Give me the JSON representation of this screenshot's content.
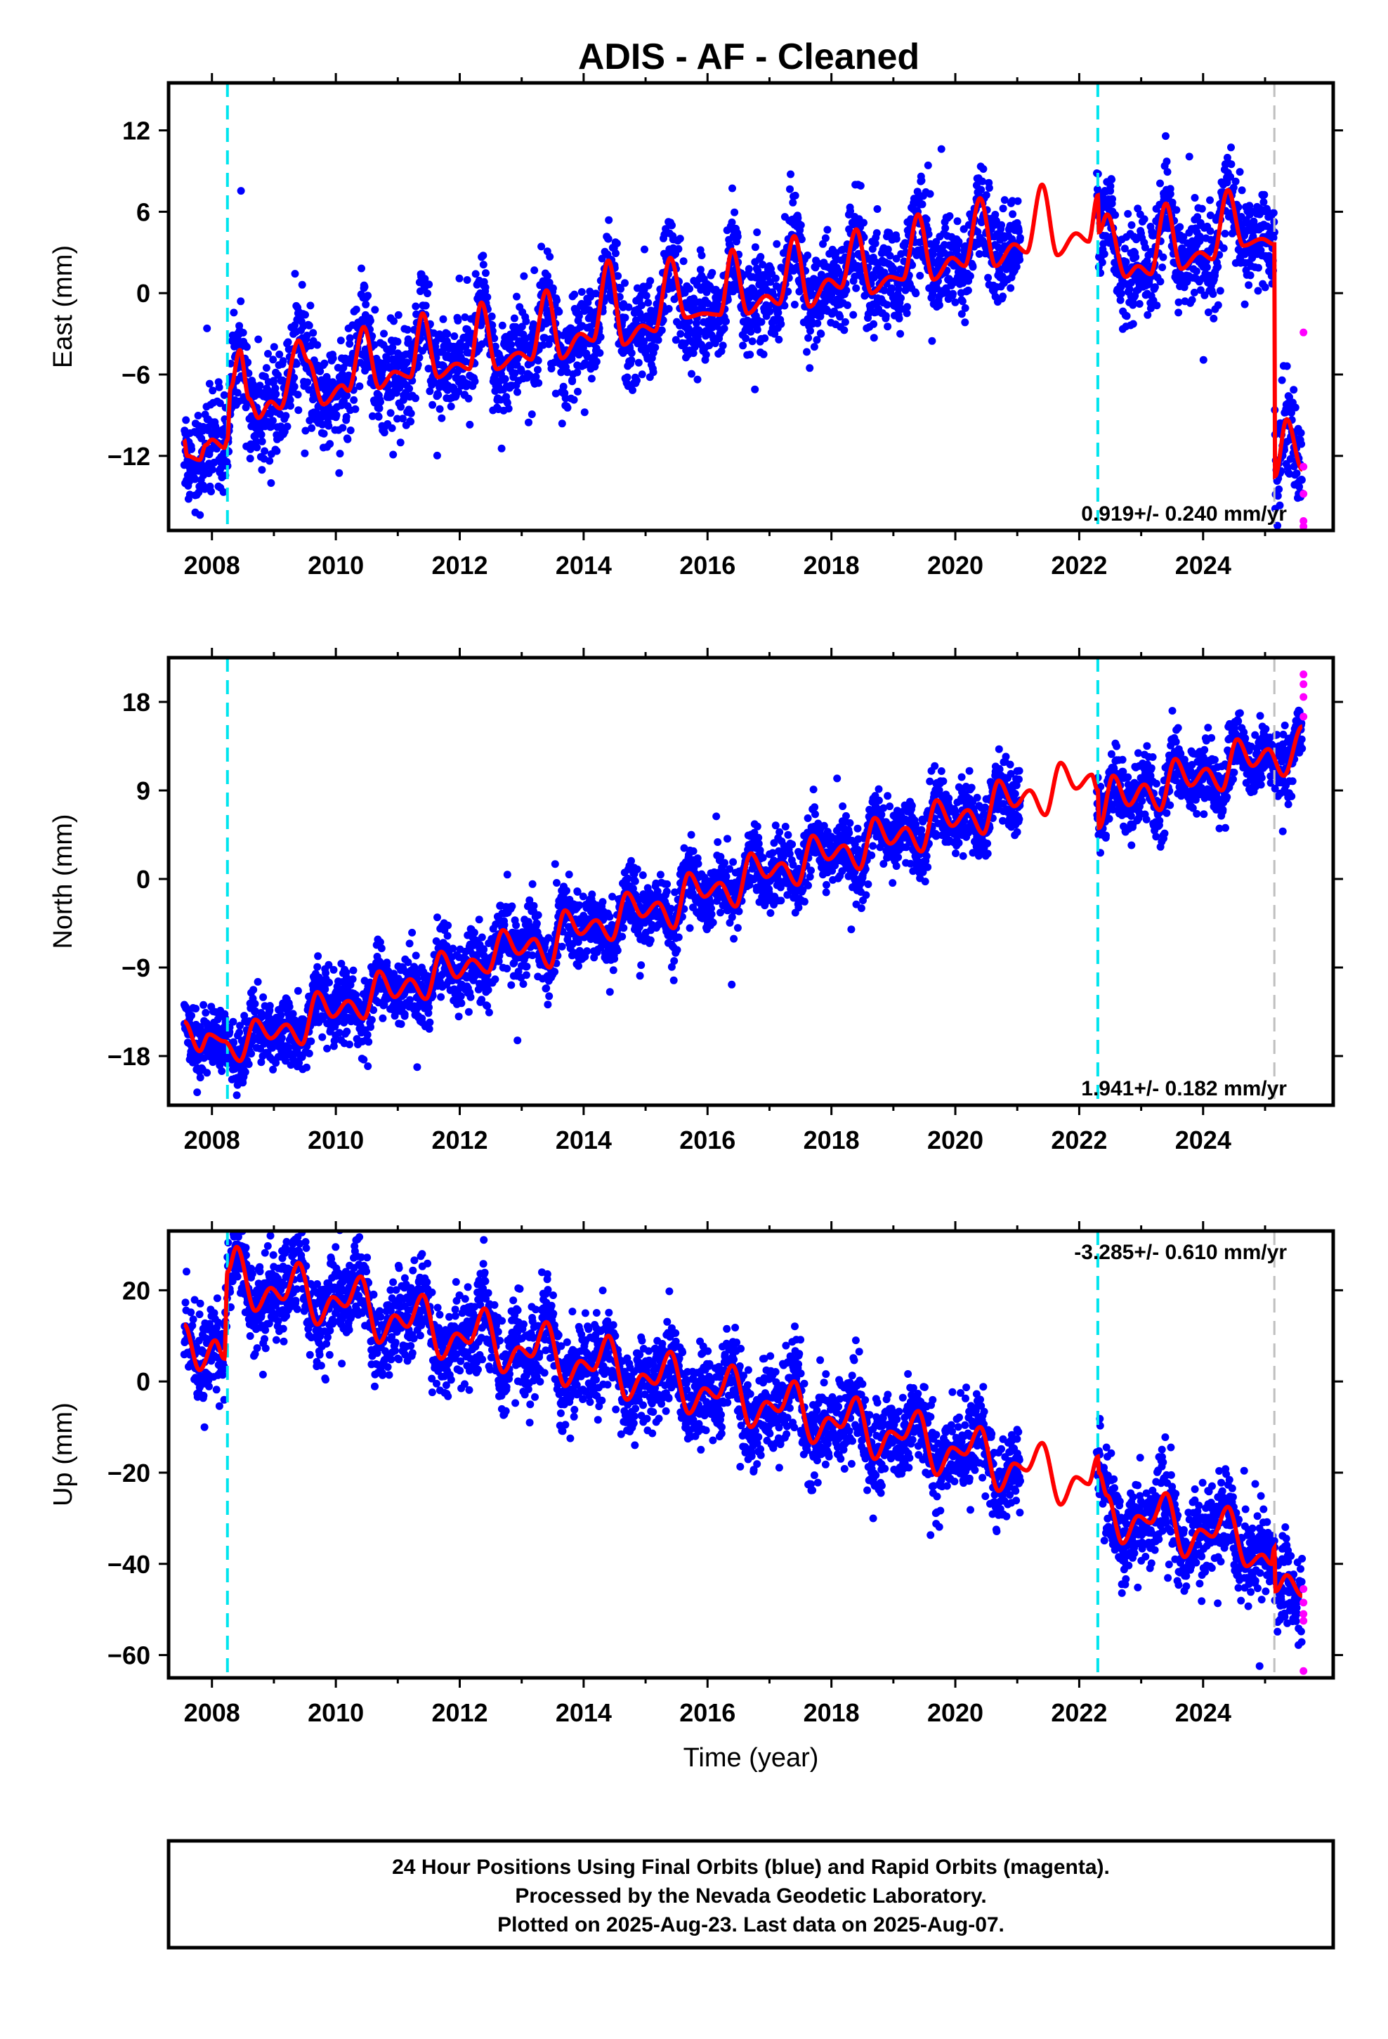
{
  "title": "ADIS  - AF - Cleaned",
  "footer": {
    "line1": "24 Hour Positions Using Final Orbits (blue) and Rapid Orbits (magenta).",
    "line2": "Processed by the Nevada Geodetic Laboratory.",
    "line3": "Plotted on 2025-Aug-23. Last data on 2025-Aug-07."
  },
  "colors": {
    "final": "#0000ff",
    "rapid": "#ff00ff",
    "model": "#ff0000",
    "equipment": "#00e5ee",
    "earthquake": "#bfbfbf"
  },
  "chart_data": [
    {
      "type": "scatter",
      "component": "east",
      "ylabel": "East (mm)",
      "xlabel": "",
      "xlim": [
        2007.3,
        2026.1
      ],
      "ylim": [
        -17.5,
        15.5
      ],
      "xticks": [
        2008,
        2010,
        2012,
        2014,
        2016,
        2018,
        2020,
        2022,
        2024
      ],
      "yticks": [
        12,
        6,
        0,
        -6,
        -12
      ],
      "rate_label": "0.919+/- 0.240 mm/yr",
      "rate_position": "bottom-right",
      "offsets_equipment": [
        2008.25,
        2022.3
      ],
      "offsets_other": [
        2025.15
      ],
      "data_span": [
        2007.55,
        2025.6
      ],
      "model_knots": [
        [
          2007.55,
          -10.8
        ],
        [
          2007.6,
          -12.0
        ],
        [
          2007.8,
          -12.3
        ],
        [
          2007.9,
          -11.2
        ],
        [
          2008.0,
          -10.8
        ],
        [
          2008.2,
          -11.4
        ],
        [
          2008.25,
          -10.8
        ],
        [
          2008.3,
          -7.0
        ],
        [
          2008.45,
          -4.2
        ],
        [
          2008.6,
          -7.8
        ],
        [
          2008.75,
          -9.2
        ],
        [
          2008.95,
          -8.0
        ],
        [
          2009.1,
          -8.5
        ],
        [
          2009.4,
          -3.5
        ],
        [
          2009.55,
          -5.0
        ],
        [
          2009.8,
          -8.2
        ],
        [
          2010.1,
          -6.8
        ],
        [
          2010.2,
          -7.2
        ],
        [
          2010.45,
          -2.5
        ],
        [
          2010.7,
          -7.0
        ],
        [
          2010.95,
          -5.8
        ],
        [
          2011.2,
          -6.2
        ],
        [
          2011.4,
          -1.5
        ],
        [
          2011.65,
          -6.2
        ],
        [
          2011.95,
          -5.2
        ],
        [
          2012.15,
          -5.6
        ],
        [
          2012.35,
          -0.7
        ],
        [
          2012.6,
          -5.6
        ],
        [
          2012.95,
          -4.4
        ],
        [
          2013.15,
          -4.9
        ],
        [
          2013.4,
          0.2
        ],
        [
          2013.65,
          -4.8
        ],
        [
          2013.95,
          -3.0
        ],
        [
          2014.15,
          -3.5
        ],
        [
          2014.4,
          2.4
        ],
        [
          2014.65,
          -3.8
        ],
        [
          2014.95,
          -2.4
        ],
        [
          2015.15,
          -2.8
        ],
        [
          2015.4,
          2.6
        ],
        [
          2015.65,
          -1.8
        ],
        [
          2015.95,
          -1.5
        ],
        [
          2016.2,
          -1.6
        ],
        [
          2016.4,
          3.2
        ],
        [
          2016.65,
          -1.5
        ],
        [
          2016.95,
          -0.2
        ],
        [
          2017.15,
          -0.8
        ],
        [
          2017.4,
          4.2
        ],
        [
          2017.65,
          -1.0
        ],
        [
          2017.95,
          1.0
        ],
        [
          2018.15,
          0.4
        ],
        [
          2018.4,
          4.7
        ],
        [
          2018.65,
          0.0
        ],
        [
          2018.95,
          1.2
        ],
        [
          2019.15,
          1.0
        ],
        [
          2019.4,
          5.8
        ],
        [
          2019.65,
          1.0
        ],
        [
          2019.95,
          2.6
        ],
        [
          2020.15,
          2.0
        ],
        [
          2020.4,
          7.0
        ],
        [
          2020.65,
          2.0
        ],
        [
          2020.95,
          3.6
        ],
        [
          2021.15,
          3.0
        ],
        [
          2021.4,
          8.0
        ],
        [
          2021.65,
          2.8
        ],
        [
          2021.95,
          4.4
        ],
        [
          2022.15,
          3.8
        ],
        [
          2022.3,
          7.2
        ],
        [
          2022.32,
          4.5
        ],
        [
          2022.45,
          5.8
        ],
        [
          2022.75,
          1.2
        ],
        [
          2022.95,
          2.0
        ],
        [
          2023.15,
          1.4
        ],
        [
          2023.4,
          6.6
        ],
        [
          2023.65,
          1.8
        ],
        [
          2023.95,
          3.0
        ],
        [
          2024.15,
          2.5
        ],
        [
          2024.4,
          7.6
        ],
        [
          2024.65,
          3.5
        ],
        [
          2024.95,
          4.0
        ],
        [
          2025.15,
          3.6
        ],
        [
          2025.16,
          -13.5
        ],
        [
          2025.35,
          -9.3
        ],
        [
          2025.6,
          -13.0
        ]
      ],
      "scatter_std": 1.8,
      "n_points": 3800,
      "rapid_points": [
        [
          2025.62,
          -2.9
        ],
        [
          2025.62,
          -12.8
        ],
        [
          2025.62,
          -14.8
        ],
        [
          2025.62,
          -16.8
        ],
        [
          2025.62,
          -17.2
        ]
      ]
    },
    {
      "type": "scatter",
      "component": "north",
      "ylabel": "North (mm)",
      "xlabel": "",
      "xlim": [
        2007.3,
        2026.1
      ],
      "ylim": [
        -23,
        22.5
      ],
      "xticks": [
        2008,
        2010,
        2012,
        2014,
        2016,
        2018,
        2020,
        2022,
        2024
      ],
      "yticks": [
        18,
        9,
        0,
        -9,
        -18
      ],
      "rate_label": "1.941+/- 0.182 mm/yr",
      "rate_position": "bottom-right",
      "offsets_equipment": [
        2008.25,
        2022.3
      ],
      "offsets_other": [
        2025.15
      ],
      "data_span": [
        2007.55,
        2025.6
      ],
      "model_knots": [
        [
          2007.55,
          -14.5
        ],
        [
          2007.8,
          -17.5
        ],
        [
          2007.95,
          -15.8
        ],
        [
          2008.2,
          -16.5
        ],
        [
          2008.45,
          -18.5
        ],
        [
          2008.7,
          -14.3
        ],
        [
          2008.95,
          -16.2
        ],
        [
          2009.2,
          -14.8
        ],
        [
          2009.45,
          -16.8
        ],
        [
          2009.7,
          -11.5
        ],
        [
          2009.95,
          -14.0
        ],
        [
          2010.2,
          -12.4
        ],
        [
          2010.45,
          -14.2
        ],
        [
          2010.7,
          -9.4
        ],
        [
          2010.95,
          -12.0
        ],
        [
          2011.2,
          -10.2
        ],
        [
          2011.45,
          -12.2
        ],
        [
          2011.7,
          -7.4
        ],
        [
          2011.95,
          -10.0
        ],
        [
          2012.2,
          -8.2
        ],
        [
          2012.45,
          -9.5
        ],
        [
          2012.7,
          -5.2
        ],
        [
          2012.95,
          -7.6
        ],
        [
          2013.2,
          -6.1
        ],
        [
          2013.45,
          -9.0
        ],
        [
          2013.7,
          -3.2
        ],
        [
          2013.95,
          -5.6
        ],
        [
          2014.2,
          -4.2
        ],
        [
          2014.45,
          -6.2
        ],
        [
          2014.7,
          -1.4
        ],
        [
          2014.95,
          -3.8
        ],
        [
          2015.2,
          -2.4
        ],
        [
          2015.45,
          -5.0
        ],
        [
          2015.7,
          0.6
        ],
        [
          2015.95,
          -1.8
        ],
        [
          2016.2,
          -0.4
        ],
        [
          2016.45,
          -2.8
        ],
        [
          2016.7,
          2.6
        ],
        [
          2016.95,
          0.2
        ],
        [
          2017.2,
          1.6
        ],
        [
          2017.45,
          -0.6
        ],
        [
          2017.7,
          4.4
        ],
        [
          2017.95,
          2.0
        ],
        [
          2018.2,
          3.4
        ],
        [
          2018.45,
          1.0
        ],
        [
          2018.7,
          6.2
        ],
        [
          2018.95,
          3.6
        ],
        [
          2019.2,
          5.2
        ],
        [
          2019.45,
          2.8
        ],
        [
          2019.7,
          8.0
        ],
        [
          2019.95,
          5.4
        ],
        [
          2020.2,
          7.0
        ],
        [
          2020.45,
          4.6
        ],
        [
          2020.7,
          10.0
        ],
        [
          2020.95,
          7.4
        ],
        [
          2021.2,
          9.0
        ],
        [
          2021.45,
          6.5
        ],
        [
          2021.7,
          11.8
        ],
        [
          2021.95,
          9.2
        ],
        [
          2022.2,
          10.6
        ],
        [
          2022.3,
          9.0
        ],
        [
          2022.32,
          5.2
        ],
        [
          2022.55,
          10.5
        ],
        [
          2022.8,
          7.5
        ],
        [
          2023.05,
          9.6
        ],
        [
          2023.3,
          7.0
        ],
        [
          2023.55,
          12.2
        ],
        [
          2023.8,
          9.5
        ],
        [
          2024.05,
          11.2
        ],
        [
          2024.3,
          9.0
        ],
        [
          2024.55,
          14.2
        ],
        [
          2024.8,
          11.5
        ],
        [
          2025.05,
          13.2
        ],
        [
          2025.3,
          10.5
        ],
        [
          2025.6,
          15.5
        ]
      ],
      "scatter_std": 1.7,
      "n_points": 3800,
      "rapid_points": [
        [
          2025.62,
          16.5
        ],
        [
          2025.62,
          18.5
        ],
        [
          2025.62,
          19.8
        ],
        [
          2025.62,
          20.8
        ]
      ]
    },
    {
      "type": "scatter",
      "component": "up",
      "ylabel": "Up (mm)",
      "xlabel": "Time (year)",
      "xlim": [
        2007.3,
        2026.1
      ],
      "ylim": [
        -65,
        33
      ],
      "xticks": [
        2008,
        2010,
        2012,
        2014,
        2016,
        2018,
        2020,
        2022,
        2024
      ],
      "yticks": [
        20,
        0,
        -20,
        -40,
        -60
      ],
      "rate_label": "-3.285+/- 0.610 mm/yr",
      "rate_position": "top-right",
      "offsets_equipment": [
        2008.25,
        2022.3
      ],
      "offsets_other": [
        2025.15
      ],
      "data_span": [
        2007.55,
        2025.6
      ],
      "model_knots": [
        [
          2007.55,
          12.5
        ],
        [
          2007.8,
          2.5
        ],
        [
          2008.05,
          9.0
        ],
        [
          2008.2,
          5.0
        ],
        [
          2008.25,
          24.0
        ],
        [
          2008.4,
          29.5
        ],
        [
          2008.7,
          15.5
        ],
        [
          2008.95,
          20.5
        ],
        [
          2009.15,
          18.0
        ],
        [
          2009.4,
          26.0
        ],
        [
          2009.7,
          12.5
        ],
        [
          2009.95,
          18.5
        ],
        [
          2010.15,
          16.5
        ],
        [
          2010.4,
          23.0
        ],
        [
          2010.7,
          8.5
        ],
        [
          2010.95,
          14.5
        ],
        [
          2011.15,
          12.0
        ],
        [
          2011.4,
          19.0
        ],
        [
          2011.7,
          5.0
        ],
        [
          2011.95,
          10.5
        ],
        [
          2012.15,
          8.5
        ],
        [
          2012.4,
          16.0
        ],
        [
          2012.7,
          2.0
        ],
        [
          2012.95,
          7.5
        ],
        [
          2013.15,
          5.5
        ],
        [
          2013.4,
          13.0
        ],
        [
          2013.7,
          -1.0
        ],
        [
          2013.95,
          4.5
        ],
        [
          2014.15,
          2.5
        ],
        [
          2014.4,
          10.0
        ],
        [
          2014.7,
          -4.0
        ],
        [
          2014.95,
          1.5
        ],
        [
          2015.15,
          -0.5
        ],
        [
          2015.4,
          6.5
        ],
        [
          2015.7,
          -7.0
        ],
        [
          2015.95,
          -1.5
        ],
        [
          2016.15,
          -3.5
        ],
        [
          2016.4,
          3.5
        ],
        [
          2016.7,
          -10.0
        ],
        [
          2016.95,
          -4.5
        ],
        [
          2017.15,
          -6.5
        ],
        [
          2017.4,
          0.0
        ],
        [
          2017.7,
          -13.5
        ],
        [
          2017.95,
          -8.0
        ],
        [
          2018.15,
          -10.0
        ],
        [
          2018.4,
          -3.5
        ],
        [
          2018.7,
          -17.0
        ],
        [
          2018.95,
          -11.0
        ],
        [
          2019.15,
          -12.5
        ],
        [
          2019.4,
          -6.5
        ],
        [
          2019.7,
          -20.5
        ],
        [
          2019.95,
          -14.5
        ],
        [
          2020.15,
          -16.0
        ],
        [
          2020.4,
          -10.0
        ],
        [
          2020.7,
          -24.0
        ],
        [
          2020.95,
          -18.0
        ],
        [
          2021.15,
          -19.5
        ],
        [
          2021.4,
          -13.5
        ],
        [
          2021.7,
          -27.0
        ],
        [
          2021.95,
          -21.0
        ],
        [
          2022.15,
          -22.5
        ],
        [
          2022.3,
          -16.5
        ],
        [
          2022.32,
          -20.0
        ],
        [
          2022.45,
          -25.0
        ],
        [
          2022.7,
          -35.5
        ],
        [
          2022.95,
          -29.5
        ],
        [
          2023.15,
          -31.0
        ],
        [
          2023.4,
          -24.5
        ],
        [
          2023.7,
          -38.5
        ],
        [
          2023.95,
          -32.5
        ],
        [
          2024.15,
          -34.0
        ],
        [
          2024.4,
          -27.5
        ],
        [
          2024.7,
          -40.5
        ],
        [
          2024.95,
          -38.0
        ],
        [
          2025.1,
          -40.0
        ],
        [
          2025.15,
          -36.5
        ],
        [
          2025.17,
          -46.0
        ],
        [
          2025.35,
          -42.5
        ],
        [
          2025.6,
          -47.0
        ]
      ],
      "scatter_std": 5.0,
      "n_points": 3800,
      "rapid_points": [
        [
          2025.62,
          -45.5
        ],
        [
          2025.62,
          -48.5
        ],
        [
          2025.62,
          -51.0
        ],
        [
          2025.62,
          -52.5
        ],
        [
          2025.62,
          -63.5
        ]
      ]
    }
  ]
}
